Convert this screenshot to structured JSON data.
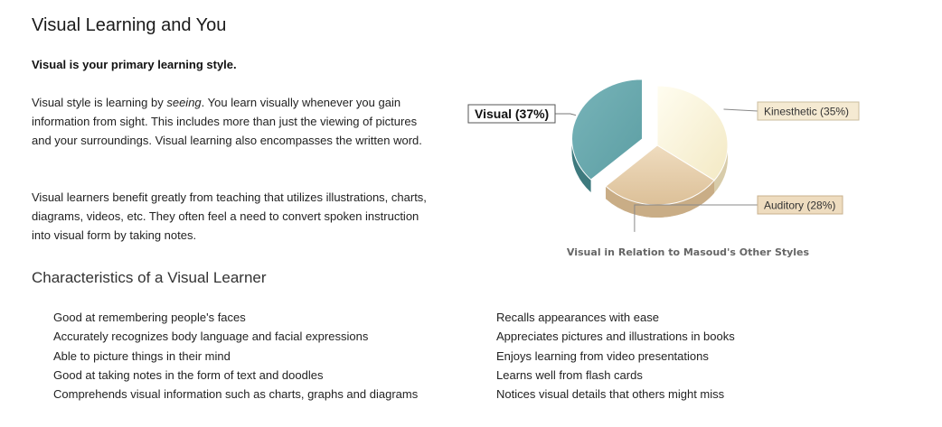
{
  "header": {
    "title": "Visual Learning and You"
  },
  "summary": {
    "primary_style": "Visual is your primary learning style."
  },
  "description": {
    "p1_before": "Visual style is learning by ",
    "p1_emphasis": "seeing",
    "p1_after": ". You learn visually whenever you gain information from sight. This includes more than just the viewing of pictures and your surroundings. Visual learning also encompasses the written word.",
    "p2": "Visual learners benefit greatly from teaching that utilizes illustrations, charts, diagrams, videos, etc. They often feel a need to convert spoken instruction into visual form by taking notes."
  },
  "characteristics": {
    "title": "Characteristics of a Visual Learner",
    "left": [
      "Good at remembering people's faces",
      "Accurately recognizes body language and facial expressions",
      "Able to picture things in their mind",
      "Good at taking notes in the form of text and doodles",
      "Comprehends visual information such as charts, graphs and diagrams"
    ],
    "right": [
      "Recalls appearances with ease",
      "Appreciates pictures and illustrations in books",
      "Enjoys learning from video presentations",
      "Learns well from flash cards",
      "Notices visual details that others might miss"
    ]
  },
  "chart_data": {
    "type": "pie",
    "title": "Visual in Relation to Masoud's Other Styles",
    "slices": [
      {
        "label": "Visual (37%)",
        "value": 37,
        "color": "#66a8ad",
        "exploded": true
      },
      {
        "label": "Kinesthetic (35%)",
        "value": 35,
        "color": "#fcf6dc"
      },
      {
        "label": "Auditory (28%)",
        "value": 28,
        "color": "#e9d0ad"
      }
    ]
  }
}
